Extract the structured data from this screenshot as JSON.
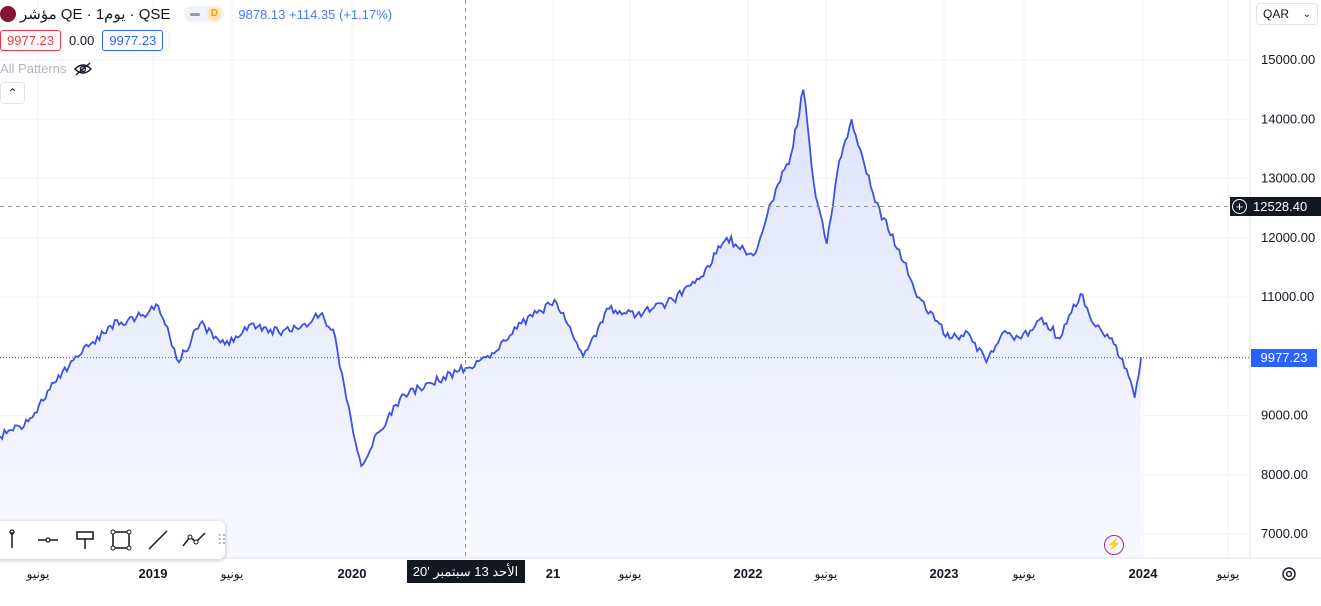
{
  "header": {
    "name": "مؤشر QE · يوم1 · QSE",
    "toggle_label": "D",
    "values": "9878.13 +114.35 (+1.17%)",
    "price_left": "9977.23",
    "change": "0.00",
    "price_right": "9977.23",
    "patterns_label": "All Patterns",
    "collapse_icon": "chevron-up-icon"
  },
  "currency": "QAR",
  "crosshair": {
    "date_label": "الأحد 13 سبتمبر '20",
    "price_label": "12528.40",
    "plus_icon": "+"
  },
  "last_price_label": "9977.23",
  "toolbar": {
    "tools": [
      "line-tool-icon",
      "horizontal-line-icon",
      "flag-icon",
      "rectangle-icon",
      "trend-line-icon",
      "path-icon",
      "drag-handle-icon"
    ]
  },
  "colors": {
    "line": "#3f51e0",
    "area_top": "#dde4fb",
    "area_bottom": "#f8f9ff",
    "last_price": "#2962ff",
    "grid": "#f0f3fa",
    "crosshair": "#9598a1"
  },
  "chart_data": {
    "type": "area",
    "symbol": "QE",
    "exchange": "QSE",
    "interval": "1D",
    "currency": "QAR",
    "y_ticks": [
      "15000.00",
      "14000.00",
      "13000.00",
      "12000.00",
      "11000.00",
      "10000.00",
      "9000.00",
      "8000.00",
      "7000.00"
    ],
    "x_ticks": [
      "يونيو",
      "2019",
      "يونيو",
      "2020",
      "21",
      "يونيو",
      "2022",
      "يونيو",
      "2023",
      "يونيو",
      "2024",
      "يونيو"
    ],
    "ylim": [
      6600,
      15800
    ],
    "xlim": [
      "2018-07-15",
      "2024-07-15"
    ],
    "last_value": 9977.23,
    "crosshair_value": 12528.4,
    "grid": true,
    "series": [
      {
        "x": [
          "2018-07-15",
          "2018-09-01",
          "2018-10-15",
          "2018-12-01",
          "2019-01-15",
          "2019-03-15",
          "2019-04-10",
          "2019-05-15",
          "2019-06-20",
          "2019-08-01",
          "2019-09-15",
          "2019-11-01",
          "2019-12-15",
          "2020-01-10",
          "2020-02-01",
          "2020-03-10",
          "2020-03-20",
          "2020-04-15",
          "2020-06-01",
          "2020-07-15",
          "2020-09-13",
          "2020-11-01",
          "2021-01-01",
          "2021-02-15",
          "2021-04-01",
          "2021-05-15",
          "2021-07-01",
          "2021-09-01",
          "2021-10-15",
          "2021-12-01",
          "2022-01-15",
          "2022-02-15",
          "2022-03-20",
          "2022-04-10",
          "2022-05-01",
          "2022-05-20",
          "2022-06-10",
          "2022-07-01",
          "2022-08-10",
          "2022-09-20",
          "2022-10-20",
          "2022-11-20",
          "2022-12-15",
          "2023-01-15",
          "2023-02-15",
          "2023-03-15",
          "2023-04-15",
          "2023-05-20",
          "2023-06-20",
          "2023-07-25",
          "2023-08-20",
          "2023-09-20",
          "2023-10-15",
          "2023-10-25",
          "2023-11-05"
        ],
        "y": [
          8650,
          8900,
          9550,
          10050,
          10500,
          10700,
          10850,
          9900,
          10550,
          10200,
          10550,
          10400,
          10550,
          10700,
          10450,
          8550,
          8150,
          8700,
          9350,
          9550,
          9800,
          10050,
          10700,
          10900,
          10000,
          10800,
          10700,
          10950,
          11300,
          12000,
          11700,
          12600,
          13400,
          14500,
          12700,
          11900,
          13300,
          14000,
          12600,
          11800,
          11000,
          10600,
          10300,
          10400,
          9900,
          10400,
          10300,
          10650,
          10300,
          11050,
          10500,
          10200,
          9650,
          9300,
          9977.23
        ]
      }
    ]
  }
}
